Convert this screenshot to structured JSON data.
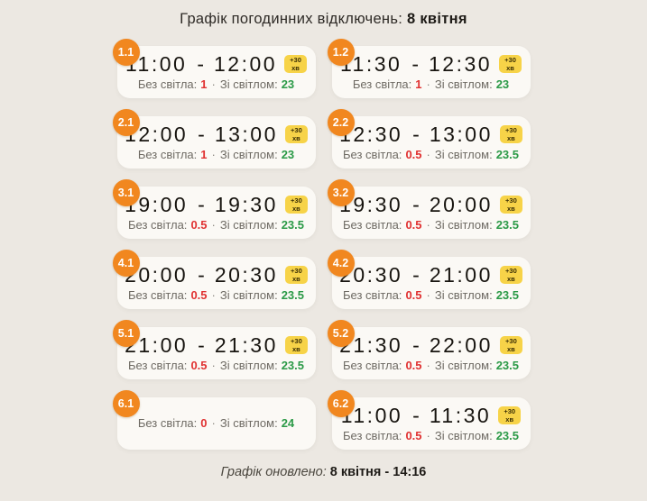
{
  "header": {
    "title_prefix": "Графік погодинних відключень:",
    "date": "8 квітня"
  },
  "time_separator": "-",
  "plus_badge": {
    "line1": "+30",
    "line2": "хв"
  },
  "labels": {
    "no_light": "Без світла:",
    "with_light": "Зі світлом:",
    "separator": "·"
  },
  "cards": [
    {
      "id": "1.1",
      "start": "11:00",
      "end": "12:00",
      "no_light": "1",
      "with_light": "23"
    },
    {
      "id": "1.2",
      "start": "11:30",
      "end": "12:30",
      "no_light": "1",
      "with_light": "23"
    },
    {
      "id": "2.1",
      "start": "12:00",
      "end": "13:00",
      "no_light": "1",
      "with_light": "23"
    },
    {
      "id": "2.2",
      "start": "12:30",
      "end": "13:00",
      "no_light": "0.5",
      "with_light": "23.5"
    },
    {
      "id": "3.1",
      "start": "19:00",
      "end": "19:30",
      "no_light": "0.5",
      "with_light": "23.5"
    },
    {
      "id": "3.2",
      "start": "19:30",
      "end": "20:00",
      "no_light": "0.5",
      "with_light": "23.5"
    },
    {
      "id": "4.1",
      "start": "20:00",
      "end": "20:30",
      "no_light": "0.5",
      "with_light": "23.5"
    },
    {
      "id": "4.2",
      "start": "20:30",
      "end": "21:00",
      "no_light": "0.5",
      "with_light": "23.5"
    },
    {
      "id": "5.1",
      "start": "21:00",
      "end": "21:30",
      "no_light": "0.5",
      "with_light": "23.5"
    },
    {
      "id": "5.2",
      "start": "21:30",
      "end": "22:00",
      "no_light": "0.5",
      "with_light": "23.5"
    },
    {
      "id": "6.1",
      "start": null,
      "end": null,
      "no_light": "0",
      "with_light": "24"
    },
    {
      "id": "6.2",
      "start": "11:00",
      "end": "11:30",
      "no_light": "0.5",
      "with_light": "23.5"
    }
  ],
  "footer": {
    "label": "Графік оновлено:",
    "value": "8 квітня - 14:16"
  },
  "colors": {
    "background": "#ECE8E2",
    "card": "#FBF9F5",
    "group_badge_orange": "#F1871F",
    "plus_badge_yellow": "#F7D348",
    "no_light_red": "#E03131",
    "with_light_green": "#2B9A47"
  }
}
